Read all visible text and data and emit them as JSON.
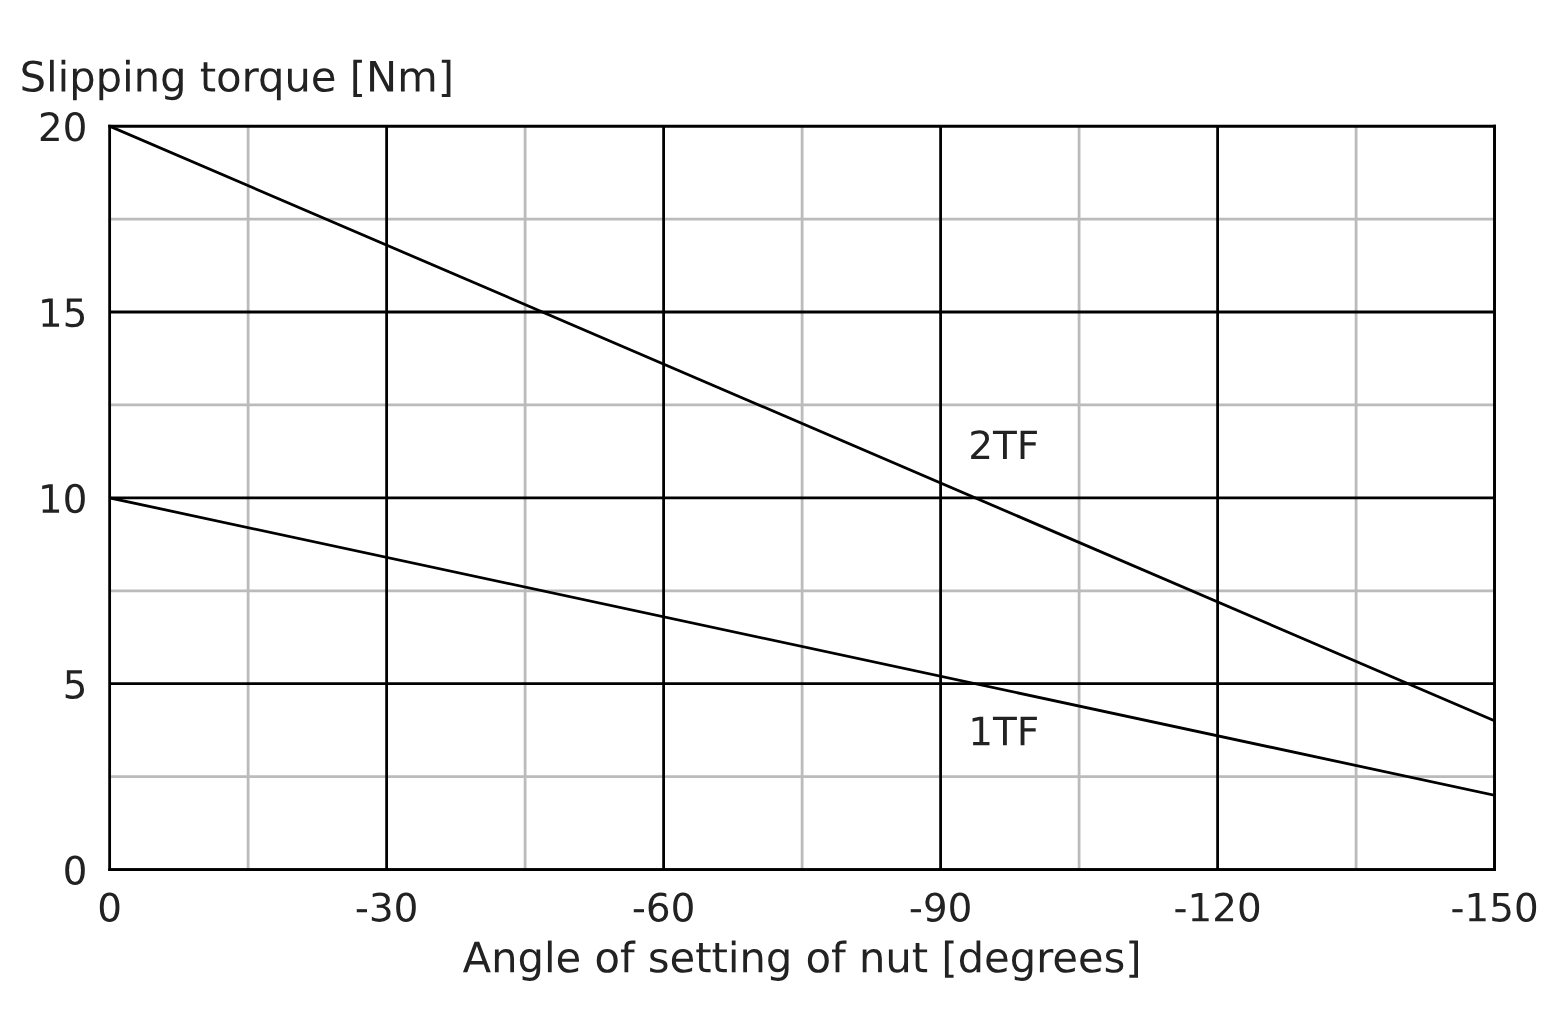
{
  "chart_data": {
    "type": "line",
    "xlabel": "Angle of setting of nut [degrees]",
    "ylabel": "Slipping torque [Nm]",
    "x": [
      0,
      -150
    ],
    "series": [
      {
        "name": "2TF",
        "color": "#000000",
        "values": [
          20,
          4
        ]
      },
      {
        "name": "1TF",
        "color": "#000000",
        "values": [
          10,
          2
        ]
      }
    ],
    "xlim": [
      0,
      -150
    ],
    "ylim": [
      0,
      20
    ],
    "xticks": [
      0,
      -30,
      -60,
      -90,
      -120,
      -150
    ],
    "yticks": [
      0,
      5,
      10,
      15,
      20
    ],
    "grid": true,
    "legend": false,
    "marker": "none",
    "line_style": "solid"
  }
}
